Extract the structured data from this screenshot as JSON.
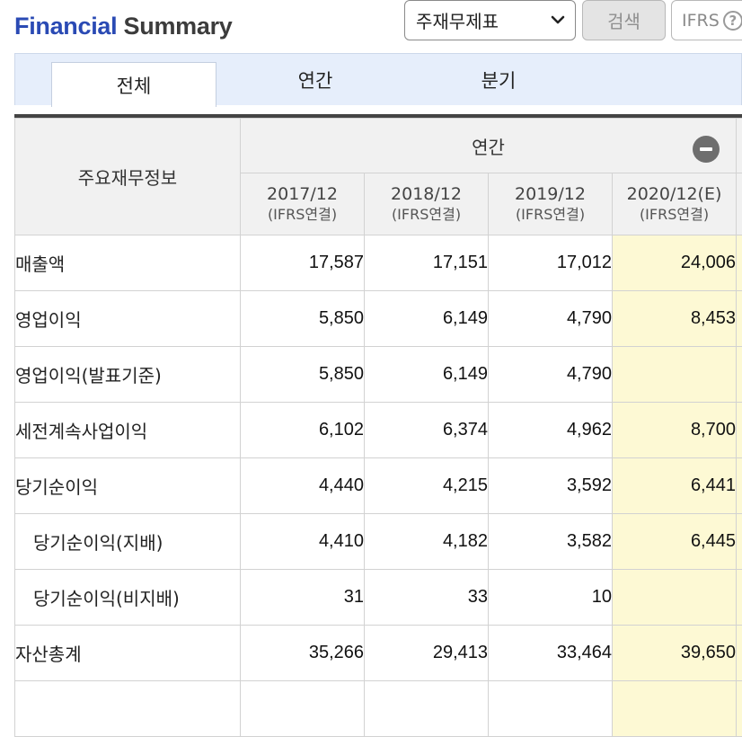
{
  "header": {
    "title_brand": "Financial",
    "title_rest": " Summary",
    "select_value": "주재무제표",
    "search_label": "검색",
    "ifrs_label": "IFRS",
    "help_glyph": "?"
  },
  "tabs": [
    "전체",
    "연간",
    "분기"
  ],
  "table": {
    "label_header": "주요재무정보",
    "group_header": "연간",
    "periods": [
      {
        "year": "2017/12",
        "basis": "(IFRS연결)"
      },
      {
        "year": "2018/12",
        "basis": "(IFRS연결)"
      },
      {
        "year": "2019/12",
        "basis": "(IFRS연결)"
      },
      {
        "year": "2020/12(E)",
        "basis": "(IFRS연결)"
      }
    ],
    "rows": [
      {
        "label": "매출액",
        "values": [
          "17,587",
          "17,151",
          "17,012",
          "24,006"
        ]
      },
      {
        "label": "영업이익",
        "values": [
          "5,850",
          "6,149",
          "4,790",
          "8,453"
        ]
      },
      {
        "label": "영업이익(발표기준)",
        "values": [
          "5,850",
          "6,149",
          "4,790",
          ""
        ]
      },
      {
        "label": "세전계속사업이익",
        "values": [
          "6,102",
          "6,374",
          "4,962",
          "8,700"
        ]
      },
      {
        "label": "당기순이익",
        "values": [
          "4,440",
          "4,215",
          "3,592",
          "6,441"
        ]
      },
      {
        "label": "당기순이익(지배)",
        "values": [
          "4,410",
          "4,182",
          "3,582",
          "6,445"
        ]
      },
      {
        "label": "당기순이익(비지배)",
        "values": [
          "31",
          "33",
          "10",
          ""
        ]
      },
      {
        "label": "자산총계",
        "values": [
          "35,266",
          "29,413",
          "33,464",
          "39,650"
        ]
      },
      {
        "label": "",
        "values": [
          "",
          "",
          "",
          ""
        ]
      }
    ]
  },
  "colors": {
    "brand": "#2a4ab4",
    "tab_bar": "#e6eefb",
    "estimate_column": "#fdf9d4",
    "header_bg": "#f1f1f1"
  }
}
